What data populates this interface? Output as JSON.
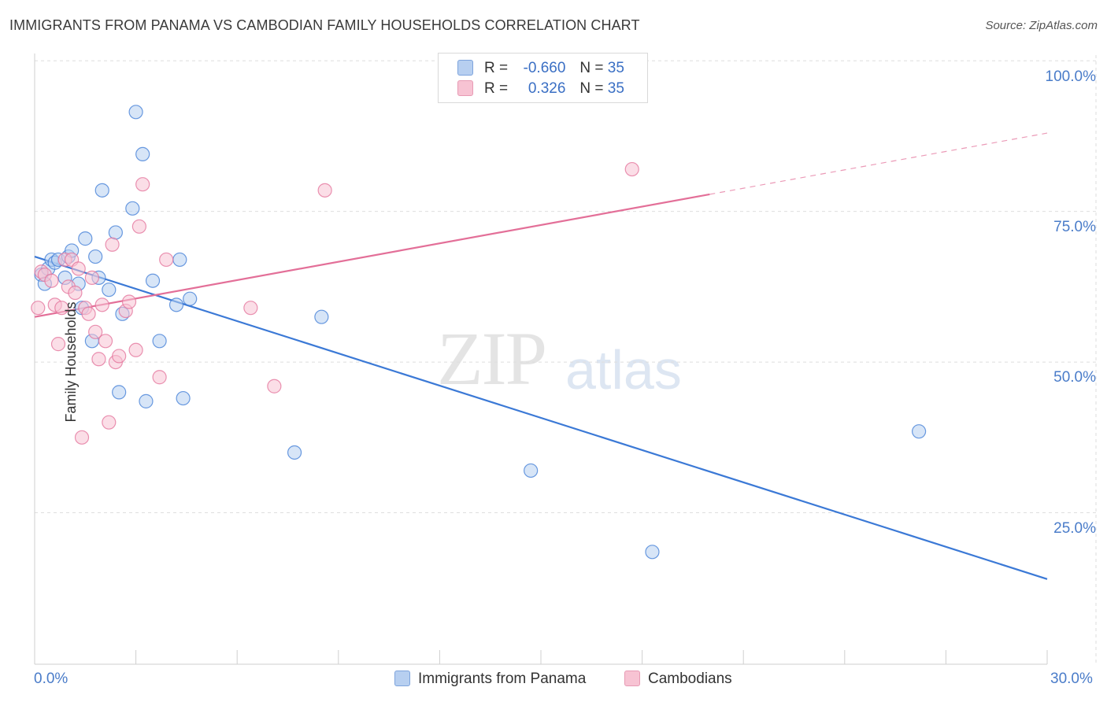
{
  "header": {
    "title": "IMMIGRANTS FROM PANAMA VS CAMBODIAN FAMILY HOUSEHOLDS CORRELATION CHART",
    "source": "Source: ZipAtlas.com"
  },
  "watermark": {
    "zip": "ZIP",
    "atlas": "atlas"
  },
  "legend_top": {
    "rows": [
      {
        "r_label": "R =",
        "r_value": "-0.660",
        "n_label": "N =",
        "n_value": "35"
      },
      {
        "r_label": "R =",
        "r_value": "0.326",
        "n_label": "N =",
        "n_value": "35"
      }
    ]
  },
  "legend_bottom": {
    "items": [
      "Immigrants from Panama",
      "Cambodians"
    ]
  },
  "colors": {
    "blue": "#3b79d6",
    "blue_fill": "#b7cff0",
    "pink": "#e36f98",
    "pink_fill": "#f7c3d3",
    "grid": "#dcdcdc",
    "tick_text": "#4a7cc9"
  },
  "chart_data": {
    "type": "scatter",
    "title": "IMMIGRANTS FROM PANAMA VS CAMBODIAN FAMILY HOUSEHOLDS CORRELATION CHART",
    "xlabel": "",
    "ylabel": "Family Households",
    "xlim": [
      0,
      30
    ],
    "ylim": [
      0,
      105
    ],
    "x_tick_labels": [
      "0.0%",
      "30.0%"
    ],
    "y_ticks": [
      25,
      50,
      75,
      100
    ],
    "y_tick_labels": [
      "25.0%",
      "50.0%",
      "75.0%",
      "100.0%"
    ],
    "grid": true,
    "series": [
      {
        "name": "Immigrants from Panama",
        "color": "#3b79d6",
        "points": [
          [
            0.2,
            64.5
          ],
          [
            0.3,
            63.0
          ],
          [
            0.4,
            65.5
          ],
          [
            0.5,
            67.0
          ],
          [
            0.6,
            66.5
          ],
          [
            0.7,
            67.0
          ],
          [
            0.9,
            64.0
          ],
          [
            1.0,
            67.5
          ],
          [
            1.1,
            68.5
          ],
          [
            1.3,
            63.0
          ],
          [
            1.4,
            59.0
          ],
          [
            1.5,
            70.5
          ],
          [
            1.7,
            53.5
          ],
          [
            1.8,
            67.5
          ],
          [
            1.9,
            64.0
          ],
          [
            2.0,
            78.5
          ],
          [
            2.2,
            62.0
          ],
          [
            2.4,
            71.5
          ],
          [
            2.5,
            45.0
          ],
          [
            2.6,
            58.0
          ],
          [
            2.9,
            75.5
          ],
          [
            3.0,
            91.5
          ],
          [
            3.2,
            84.5
          ],
          [
            3.3,
            43.5
          ],
          [
            3.5,
            63.5
          ],
          [
            3.7,
            53.5
          ],
          [
            4.2,
            59.5
          ],
          [
            4.3,
            67.0
          ],
          [
            4.4,
            44.0
          ],
          [
            4.6,
            60.5
          ],
          [
            7.7,
            35.0
          ],
          [
            8.5,
            57.5
          ],
          [
            14.7,
            32.0
          ],
          [
            18.3,
            18.5
          ],
          [
            26.2,
            38.5
          ]
        ],
        "trend": {
          "x": [
            0,
            30
          ],
          "y": [
            67.5,
            14.0
          ],
          "style": "solid"
        }
      },
      {
        "name": "Cambodians",
        "color": "#e36f98",
        "points": [
          [
            0.1,
            59.0
          ],
          [
            0.2,
            65.0
          ],
          [
            0.3,
            64.5
          ],
          [
            0.5,
            63.5
          ],
          [
            0.6,
            59.5
          ],
          [
            0.7,
            53.0
          ],
          [
            0.8,
            59.0
          ],
          [
            0.9,
            67.0
          ],
          [
            1.0,
            62.5
          ],
          [
            1.1,
            67.0
          ],
          [
            1.2,
            61.5
          ],
          [
            1.3,
            65.5
          ],
          [
            1.4,
            37.5
          ],
          [
            1.5,
            59.0
          ],
          [
            1.6,
            58.0
          ],
          [
            1.7,
            64.0
          ],
          [
            1.8,
            55.0
          ],
          [
            1.9,
            50.5
          ],
          [
            2.0,
            59.5
          ],
          [
            2.1,
            53.5
          ],
          [
            2.2,
            40.0
          ],
          [
            2.3,
            69.5
          ],
          [
            2.4,
            50.0
          ],
          [
            2.5,
            51.0
          ],
          [
            2.7,
            58.5
          ],
          [
            2.8,
            60.0
          ],
          [
            3.0,
            52.0
          ],
          [
            3.1,
            72.5
          ],
          [
            3.2,
            79.5
          ],
          [
            3.7,
            47.5
          ],
          [
            3.9,
            67.0
          ],
          [
            6.4,
            59.0
          ],
          [
            7.1,
            46.0
          ],
          [
            8.6,
            78.5
          ],
          [
            17.7,
            82.0
          ]
        ],
        "trend": {
          "x": [
            0,
            30
          ],
          "y": [
            57.5,
            88.0
          ],
          "solid_until_x": 20.0,
          "style": "solid-then-dashed"
        }
      }
    ]
  }
}
